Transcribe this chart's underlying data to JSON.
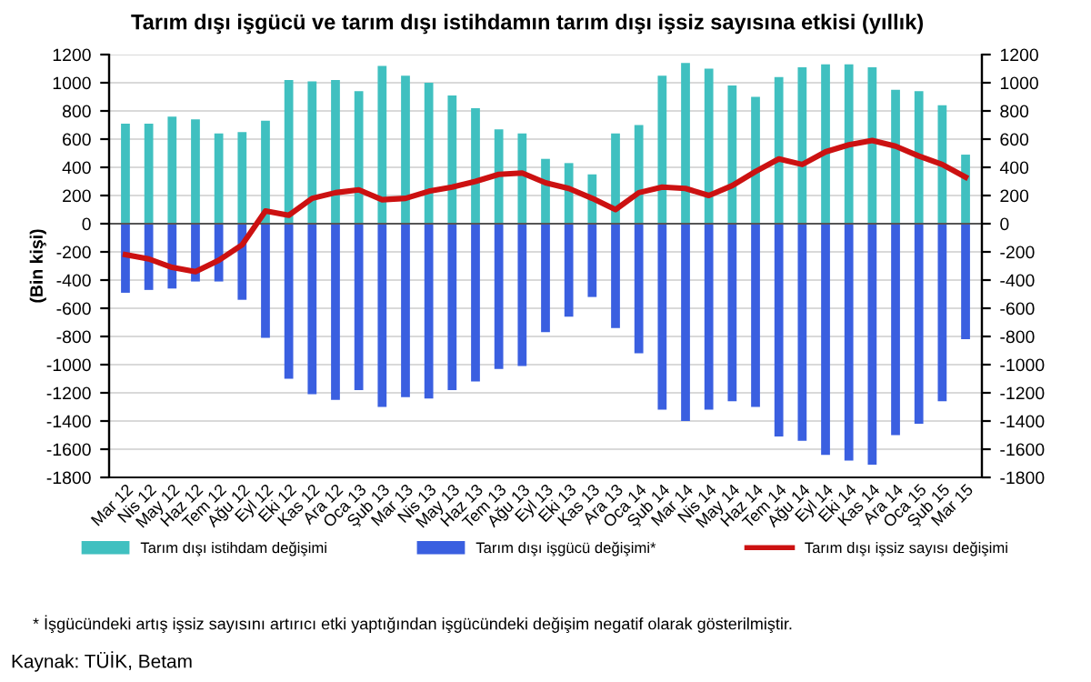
{
  "chart_data": {
    "type": "bar",
    "title": "Tarım dışı işgücü ve tarım dışı istihdamın tarım dışı işsiz sayısına etkisi (yıllık)",
    "ylabel": "(Bin kişi)",
    "categories": [
      "Mar 12",
      "Nis 12",
      "May 12",
      "Haz 12",
      "Tem 12",
      "Ağu 12",
      "Eyl 12",
      "Eki 12",
      "Kas 12",
      "Ara 12",
      "Oca 13",
      "Şub 13",
      "Mar 13",
      "Nis 13",
      "May 13",
      "Haz 13",
      "Tem 13",
      "Ağu 13",
      "Eyl 13",
      "Eki 13",
      "Kas 13",
      "Ara 13",
      "Oca 14",
      "Şub 14",
      "Mar 14",
      "Nis 14",
      "May 14",
      "Haz 14",
      "Tem 14",
      "Ağu 14",
      "Eyl 14",
      "Eki 14",
      "Kas 14",
      "Ara 14",
      "Oca 15",
      "Şub 15",
      "Mar 15"
    ],
    "series": [
      {
        "name": "Tarım dışı istihdam değişimi",
        "color": "#40c0c0",
        "values": [
          710,
          710,
          760,
          740,
          640,
          650,
          730,
          1020,
          1010,
          1020,
          940,
          1120,
          1050,
          1000,
          910,
          820,
          670,
          640,
          460,
          430,
          350,
          640,
          700,
          1050,
          1140,
          1100,
          980,
          900,
          1040,
          1110,
          1130,
          1130,
          1110,
          950,
          940,
          840,
          490
        ]
      },
      {
        "name": "Tarım dışı işgücü değişimi*",
        "color": "#3a5fe0",
        "values": [
          -490,
          -470,
          -460,
          -410,
          -410,
          -540,
          -810,
          -1100,
          -1210,
          -1250,
          -1180,
          -1300,
          -1230,
          -1240,
          -1180,
          -1120,
          -1030,
          -1010,
          -770,
          -660,
          -520,
          -740,
          -920,
          -1320,
          -1400,
          -1320,
          -1260,
          -1300,
          -1510,
          -1540,
          -1640,
          -1680,
          -1710,
          -1500,
          -1420,
          -1260,
          -820
        ]
      },
      {
        "name": "Tarım dışı işsiz sayısı değişimi",
        "type": "line",
        "color": "#cc1111",
        "values": [
          -220,
          -250,
          -310,
          -340,
          -260,
          -150,
          90,
          60,
          180,
          220,
          240,
          170,
          180,
          230,
          260,
          300,
          350,
          360,
          290,
          250,
          180,
          100,
          220,
          260,
          250,
          200,
          270,
          370,
          460,
          420,
          510,
          560,
          590,
          550,
          480,
          420,
          330
        ]
      }
    ],
    "stacked": true,
    "ylim": [
      -1800,
      1200
    ],
    "yticks": [
      -1800,
      -1600,
      -1400,
      -1200,
      -1000,
      -800,
      -600,
      -400,
      -200,
      0,
      200,
      400,
      600,
      800,
      1000,
      1200
    ],
    "y2lim": [
      -1800,
      1200
    ],
    "y2ticks": [
      -1800,
      -1600,
      -1400,
      -1200,
      -1000,
      -800,
      -600,
      -400,
      -200,
      0,
      200,
      400,
      600,
      800,
      1000,
      1200
    ],
    "grid": "y",
    "legend": "bottom",
    "marker": "none",
    "line_style": "solid",
    "annotations": [
      "* İşgücündeki artış işsiz sayısını artırıcı etki yaptığından işgücündeki değişim negatif olarak gösterilmiştir.",
      "Kaynak: TÜİK, Betam"
    ]
  }
}
